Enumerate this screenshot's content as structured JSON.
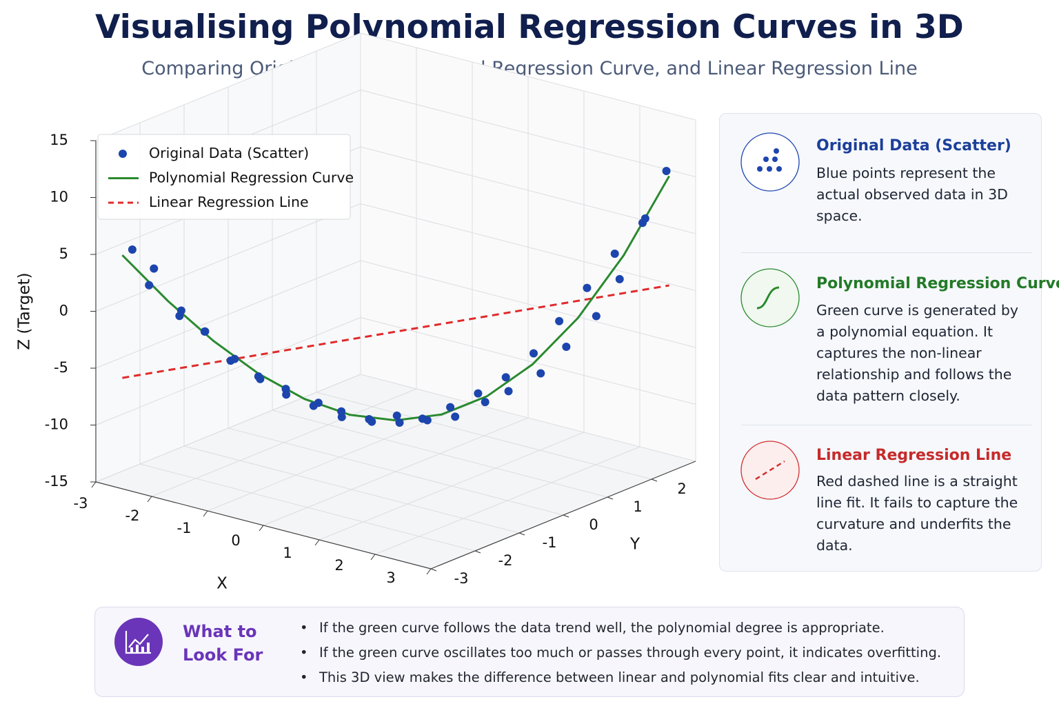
{
  "header": {
    "title": "Visualising Polynomial Regression Curves in 3D",
    "subtitle": "Comparing Original Data, Polynomial Regression Curve, and Linear Regression Line"
  },
  "chart_data": {
    "type": "scatter3d",
    "x_label": "X",
    "y_label": "Y",
    "z_label": "Z (Target)",
    "xlim": [
      -3,
      3
    ],
    "xticks": [
      -3,
      -2,
      -1,
      0,
      1,
      2,
      3
    ],
    "ylim": [
      -3,
      3
    ],
    "yticks": [
      -3,
      -2,
      -1,
      0,
      1,
      2
    ],
    "zlim": [
      -15,
      15
    ],
    "zticks": [
      -15,
      -10,
      -5,
      0,
      5,
      10,
      15
    ],
    "grid": true,
    "legend": "upper left",
    "series": [
      {
        "name": "Original Data (Scatter)",
        "type": "scatter",
        "color": "#1c45ad",
        "x": [
          -2.9,
          -2.75,
          -2.6,
          -2.45,
          -2.3,
          -2.15,
          -2.0,
          -1.85,
          -1.7,
          -1.55,
          -1.4,
          -1.25,
          -1.1,
          -0.95,
          -0.8,
          -0.65,
          -0.5,
          -0.35,
          -0.2,
          -0.05,
          0.1,
          0.25,
          0.4,
          0.55,
          0.7,
          0.85,
          1.0,
          1.15,
          1.3,
          1.45,
          1.6,
          1.75,
          1.9,
          2.05,
          2.2,
          2.35,
          2.5,
          2.65,
          2.8,
          2.95
        ],
        "y": [
          -2.3,
          -2.0,
          -2.3,
          -1.8,
          -1.95,
          -1.6,
          -1.8,
          -1.4,
          -1.5,
          -1.15,
          -1.3,
          -0.9,
          -1.1,
          -0.55,
          -0.85,
          -0.4,
          -0.6,
          -0.1,
          -0.35,
          0.15,
          -0.1,
          0.4,
          0.1,
          0.65,
          0.35,
          0.95,
          0.6,
          1.1,
          0.85,
          1.45,
          1.1,
          1.65,
          1.3,
          1.95,
          1.55,
          2.1,
          1.8,
          2.3,
          2.05,
          2.4
        ],
        "z": [
          4.45,
          2.5,
          1.7,
          -1.6,
          -0.7,
          -2.9,
          -2.4,
          -5.4,
          -4.9,
          -6.8,
          -6.6,
          -8.4,
          -7.4,
          -9.3,
          -8.9,
          -10.4,
          -9.4,
          -10.9,
          -10.1,
          -11.0,
          -9.8,
          -10.8,
          -10.0,
          -10.5,
          -9.0,
          -9.3,
          -7.8,
          -8.2,
          -6.4,
          -6.8,
          -4.3,
          -4.4,
          -1.4,
          -1.8,
          1.5,
          1.6,
          4.5,
          7.0,
          7.2,
          11.4
        ]
      },
      {
        "name": "Polynomial Regression Curve",
        "type": "line",
        "color": "#2a8a2e",
        "x": [
          -3,
          -2.5,
          -2,
          -1.5,
          -1,
          -0.5,
          0,
          0.5,
          1,
          1.5,
          2,
          2.5,
          3
        ],
        "y": [
          -2.4,
          -2.0,
          -1.6,
          -1.2,
          -0.8,
          -0.4,
          0,
          0.4,
          0.8,
          1.2,
          1.6,
          2.0,
          2.4
        ],
        "z": [
          3.99,
          -0.03,
          -3.54,
          -6.44,
          -8.63,
          -10.02,
          -10.5,
          -9.98,
          -8.37,
          -5.56,
          -1.46,
          4.03,
          11.01
        ]
      },
      {
        "name": "Linear Regression Line",
        "type": "line",
        "linestyle": "dashed",
        "color": "#e02a2a",
        "x": [
          -3,
          3
        ],
        "y": [
          -2.4,
          2.4
        ],
        "z": [
          -6.8,
          1.4
        ]
      }
    ]
  },
  "legend_panel": {
    "items": [
      {
        "title": "Original Data (Scatter)",
        "description": "Blue points represent the actual observed data in 3D space."
      },
      {
        "title": "Polynomial Regression Curve",
        "description": "Green curve is generated by a polynomial equation. It captures the non-linear relationship and follows the data pattern closely."
      },
      {
        "title": "Linear Regression Line",
        "description": "Red dashed line is a straight line fit. It fails to capture the curvature and underfits the data."
      }
    ]
  },
  "notes": {
    "title": "What to Look For",
    "bullets": [
      "If the green curve follows the data trend well, the polynomial degree is appropriate.",
      "If the green curve oscillates too much or passes through every point, it indicates overfitting.",
      "This 3D view makes the difference between linear and polynomial fits clear and intuitive."
    ]
  }
}
